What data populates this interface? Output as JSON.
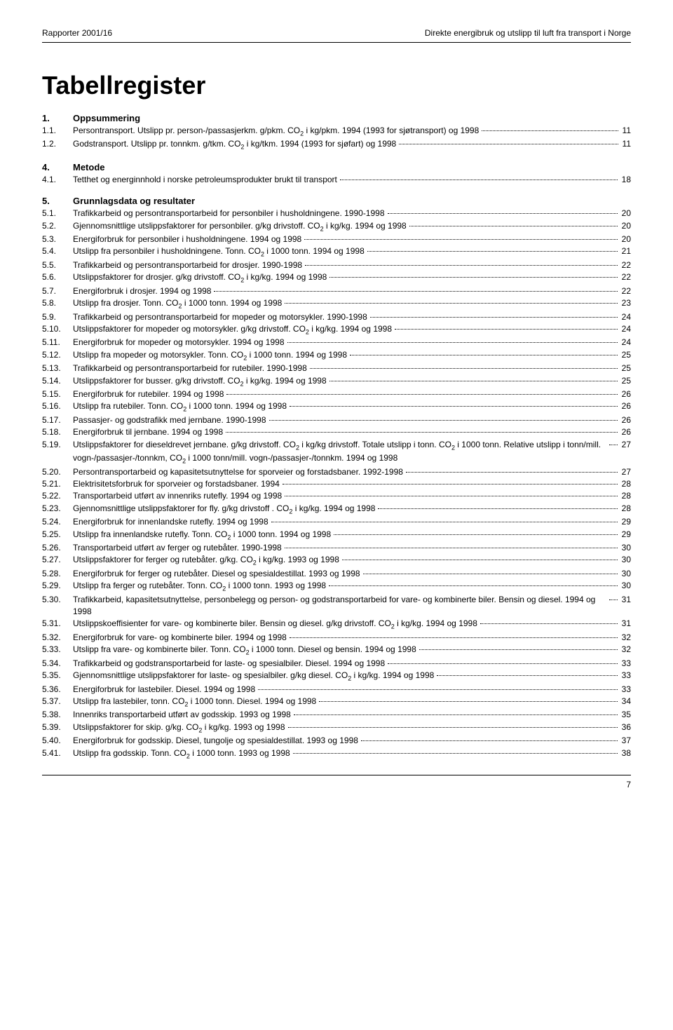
{
  "header": {
    "left": "Rapporter 2001/16",
    "right": "Direkte energibruk og utslipp til luft fra transport i Norge"
  },
  "title": "Tabellregister",
  "footer_page": "7",
  "sections": [
    {
      "num": "1.",
      "title": "Oppsummering",
      "entries": [
        {
          "num": "1.1.",
          "text": "Persontransport. Utslipp pr. person-/passasjerkm. g/pkm. CO₂ i kg/pkm. 1994 (1993 for sjøtransport) og 1998",
          "page": "11"
        },
        {
          "num": "1.2.",
          "text": "Godstransport. Utslipp pr. tonnkm. g/tkm. CO₂ i kg/tkm. 1994 (1993 for sjøfart) og 1998",
          "page": "11"
        }
      ]
    },
    {
      "num": "4.",
      "title": "Metode",
      "entries": [
        {
          "num": "4.1.",
          "text": "Tetthet og energinnhold i norske petroleumsprodukter brukt til transport",
          "page": "18"
        }
      ]
    },
    {
      "num": "5.",
      "title": "Grunnlagsdata og resultater",
      "entries": [
        {
          "num": "5.1.",
          "text": "Trafikkarbeid og persontransportarbeid for personbiler i husholdningene. 1990-1998",
          "page": "20"
        },
        {
          "num": "5.2.",
          "text": "Gjennomsnittlige utslippsfaktorer for personbiler. g/kg drivstoff. CO₂ i kg/kg. 1994 og 1998",
          "page": "20"
        },
        {
          "num": "5.3.",
          "text": "Energiforbruk for personbiler i husholdningene. 1994 og 1998",
          "page": "20"
        },
        {
          "num": "5.4.",
          "text": "Utslipp fra personbiler i husholdningene. Tonn. CO₂ i 1000 tonn. 1994 og 1998",
          "page": "21"
        },
        {
          "num": "5.5.",
          "text": "Trafikkarbeid og persontransportarbeid for drosjer. 1990-1998",
          "page": "22"
        },
        {
          "num": "5.6.",
          "text": "Utslippsfaktorer for drosjer. g/kg drivstoff. CO₂ i kg/kg. 1994 og 1998",
          "page": "22"
        },
        {
          "num": "5.7.",
          "text": "Energiforbruk i drosjer. 1994 og 1998",
          "page": "22"
        },
        {
          "num": "5.8.",
          "text": "Utslipp fra drosjer. Tonn. CO₂ i 1000 tonn. 1994 og 1998",
          "page": "23"
        },
        {
          "num": "5.9.",
          "text": "Trafikkarbeid og persontransportarbeid for mopeder og motorsykler. 1990-1998",
          "page": "24"
        },
        {
          "num": "5.10.",
          "text": "Utslippsfaktorer for mopeder og motorsykler. g/kg drivstoff. CO₂ i kg/kg. 1994 og 1998",
          "page": "24"
        },
        {
          "num": "5.11.",
          "text": "Energiforbruk for mopeder og motorsykler. 1994 og 1998",
          "page": "24"
        },
        {
          "num": "5.12.",
          "text": "Utslipp fra mopeder og motorsykler. Tonn. CO₂ i 1000 tonn. 1994 og 1998",
          "page": "25"
        },
        {
          "num": "5.13.",
          "text": "Trafikkarbeid og persontransportarbeid for rutebiler. 1990-1998",
          "page": "25"
        },
        {
          "num": "5.14.",
          "text": "Utslippsfaktorer for busser. g/kg drivstoff. CO₂ i kg/kg. 1994 og 1998",
          "page": "25"
        },
        {
          "num": "5.15.",
          "text": "Energiforbruk for rutebiler. 1994 og 1998",
          "page": "26"
        },
        {
          "num": "5.16.",
          "text": "Utslipp fra rutebiler. Tonn. CO₂ i 1000 tonn. 1994 og 1998",
          "page": "26"
        },
        {
          "num": "5.17.",
          "text": "Passasjer- og godstrafikk med jernbane. 1990-1998",
          "page": "26"
        },
        {
          "num": "5.18.",
          "text": "Energiforbruk til jernbane. 1994 og 1998",
          "page": "26"
        },
        {
          "num": "5.19.",
          "text": "Utslippsfaktorer for dieseldrevet jernbane. g/kg drivstoff. CO₂ i kg/kg drivstoff. Totale utslipp i tonn. CO₂ i 1000 tonn. Relative utslipp i tonn/mill. vogn-/passasjer-/tonnkm, CO₂ i 1000 tonn/mill. vogn-/passasjer-/tonnkm. 1994 og 1998",
          "page": "27"
        },
        {
          "num": "5.20.",
          "text": "Persontransportarbeid og kapasitetsutnyttelse for sporveier og forstadsbaner. 1992-1998",
          "page": "27"
        },
        {
          "num": "5.21.",
          "text": "Elektrisitetsforbruk for sporveier og forstadsbaner. 1994",
          "page": "28"
        },
        {
          "num": "5.22.",
          "text": "Transportarbeid utført av innenriks rutefly. 1994 og 1998",
          "page": "28"
        },
        {
          "num": "5.23.",
          "text": "Gjennomsnittlige utslippsfaktorer for fly. g/kg drivstoff . CO₂ i kg/kg. 1994 og 1998",
          "page": "28"
        },
        {
          "num": "5.24.",
          "text": "Energiforbruk for innenlandske rutefly. 1994 og 1998",
          "page": "29"
        },
        {
          "num": "5.25.",
          "text": "Utslipp fra innenlandske rutefly. Tonn. CO₂ i 1000 tonn. 1994 og 1998",
          "page": "29"
        },
        {
          "num": "5.26.",
          "text": "Transportarbeid utført av ferger og rutebåter. 1990-1998",
          "page": "30"
        },
        {
          "num": "5.27.",
          "text": "Utslippsfaktorer for ferger og rutebåter. g/kg. CO₂ i kg/kg. 1993 og 1998",
          "page": "30"
        },
        {
          "num": "5.28.",
          "text": "Energiforbruk for ferger og rutebåter. Diesel og spesialdestillat. 1993 og 1998",
          "page": "30"
        },
        {
          "num": "5.29.",
          "text": "Utslipp fra ferger og rutebåter. Tonn. CO₂ i 1000 tonn. 1993 og 1998",
          "page": "30"
        },
        {
          "num": "5.30.",
          "text": "Trafikkarbeid, kapasitetsutnyttelse, personbelegg og person- og godstransportarbeid for vare- og kombinerte biler. Bensin og diesel. 1994 og 1998",
          "page": "31"
        },
        {
          "num": "5.31.",
          "text": "Utslippskoeffisienter for vare- og kombinerte biler. Bensin og diesel. g/kg drivstoff. CO₂ i kg/kg. 1994 og 1998",
          "page": "31"
        },
        {
          "num": "5.32.",
          "text": "Energiforbruk for vare- og kombinerte biler. 1994 og 1998",
          "page": "32"
        },
        {
          "num": "5.33.",
          "text": "Utslipp fra vare- og kombinerte biler. Tonn. CO₂ i 1000 tonn. Diesel og bensin. 1994 og 1998",
          "page": "32"
        },
        {
          "num": "5.34.",
          "text": "Trafikkarbeid og godstransportarbeid for laste- og spesialbiler. Diesel. 1994 og 1998",
          "page": "33"
        },
        {
          "num": "5.35.",
          "text": "Gjennomsnittlige utslippsfaktorer for laste- og spesialbiler. g/kg diesel. CO₂ i kg/kg. 1994 og 1998",
          "page": "33"
        },
        {
          "num": "5.36.",
          "text": "Energiforbruk for lastebiler. Diesel. 1994 og 1998",
          "page": "33"
        },
        {
          "num": "5.37.",
          "text": "Utslipp fra lastebiler, tonn. CO₂ i 1000 tonn. Diesel. 1994 og 1998",
          "page": "34"
        },
        {
          "num": "5.38.",
          "text": "Innenriks transportarbeid utført av godsskip. 1993 og 1998",
          "page": "35"
        },
        {
          "num": "5.39.",
          "text": "Utslippsfaktorer for skip. g/kg. CO₂ i kg/kg. 1993 og 1998",
          "page": "36"
        },
        {
          "num": "5.40.",
          "text": "Energiforbruk for godsskip. Diesel, tungolje og spesialdestillat. 1993 og 1998",
          "page": "37"
        },
        {
          "num": "5.41.",
          "text": "Utslipp fra godsskip. Tonn. CO₂ i 1000 tonn. 1993 og 1998",
          "page": "38"
        }
      ]
    }
  ]
}
